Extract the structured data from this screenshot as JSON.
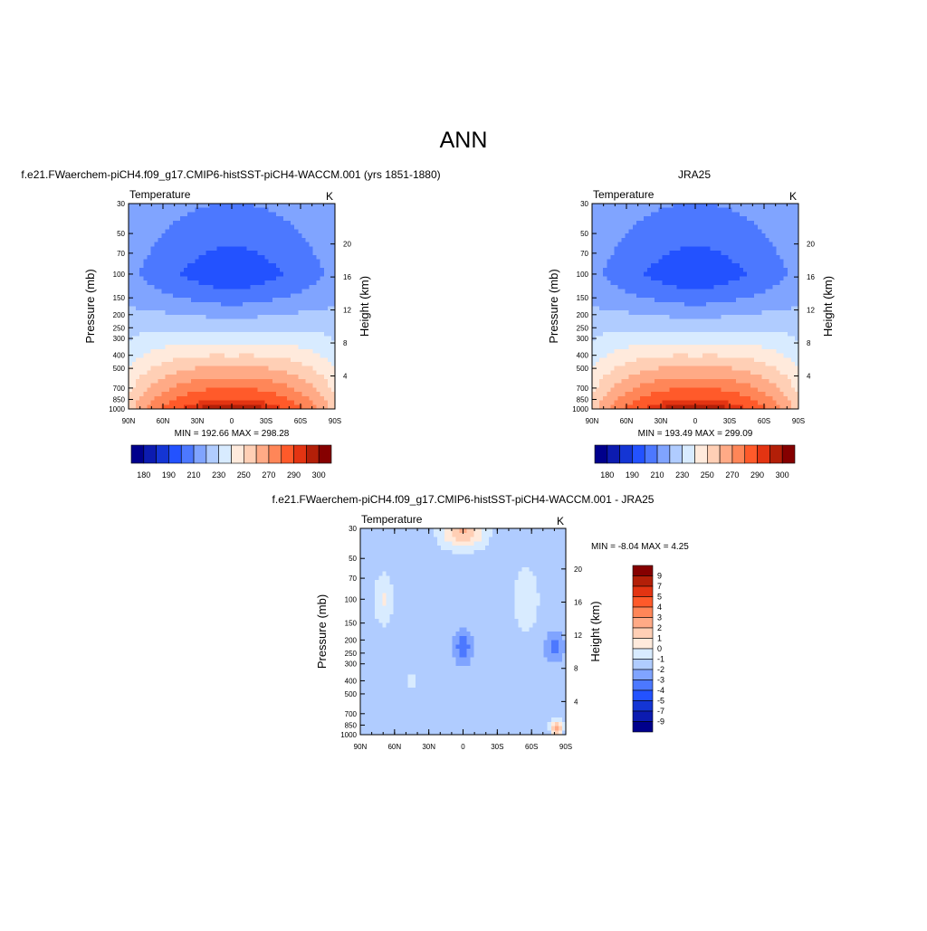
{
  "page_title": "ANN",
  "colors": {
    "abs_levels": [
      "#00008c",
      "#0c1bb0",
      "#1435d4",
      "#2352ff",
      "#4c78ff",
      "#80a4ff",
      "#b0ccff",
      "#d8ebff",
      "#ffeadc",
      "#ffcfb5",
      "#ffaa86",
      "#ff8658",
      "#ff5a2a",
      "#e33412",
      "#b31f08",
      "#850000"
    ],
    "diff_levels": [
      "#00008c",
      "#0c1bb0",
      "#1435d4",
      "#2352ff",
      "#4c78ff",
      "#80a4ff",
      "#b0ccff",
      "#d8ebff",
      "#ffeadc",
      "#ffcfb5",
      "#ffaa86",
      "#ff8658",
      "#ff5a2a",
      "#e33412",
      "#b31f08",
      "#850000"
    ]
  },
  "chart_data": [
    {
      "type": "heatmap",
      "title": "f.e21.FWaerchem-piCH4.f09_g17.CMIP6-histSST-piCH4-WACCM.001 (yrs 1851-1880)",
      "left_string": "Temperature",
      "right_string": "K",
      "xlabel": "",
      "ylabel": "Pressure (mb)",
      "ylabel_right": "Height (km)",
      "x_ticks": [
        "90N",
        "60N",
        "30N",
        "0",
        "30S",
        "60S",
        "90S"
      ],
      "y_ticks": [
        "30",
        "50",
        "70",
        "100",
        "150",
        "200",
        "250",
        "300",
        "400",
        "500",
        "700",
        "850",
        "1000"
      ],
      "y_right_ticks": [
        "20",
        "16",
        "12",
        "8",
        "4"
      ],
      "ylim": [
        1000,
        30
      ],
      "y_log": true,
      "stats": "MIN = 192.66  MAX = 298.28",
      "colorbar_labels": [
        "180",
        "190",
        "210",
        "230",
        "250",
        "270",
        "290",
        "300"
      ],
      "field": "temperature"
    },
    {
      "type": "heatmap",
      "title": "JRA25",
      "left_string": "Temperature",
      "right_string": "K",
      "xlabel": "",
      "ylabel": "Pressure (mb)",
      "ylabel_right": "Height (km)",
      "x_ticks": [
        "90N",
        "60N",
        "30N",
        "0",
        "30S",
        "60S",
        "90S"
      ],
      "y_ticks": [
        "30",
        "50",
        "70",
        "100",
        "150",
        "200",
        "250",
        "300",
        "400",
        "500",
        "700",
        "850",
        "1000"
      ],
      "y_right_ticks": [
        "20",
        "16",
        "12",
        "8",
        "4"
      ],
      "ylim": [
        1000,
        30
      ],
      "y_log": true,
      "stats": "MIN = 193.49  MAX = 299.09",
      "colorbar_labels": [
        "180",
        "190",
        "210",
        "230",
        "250",
        "270",
        "290",
        "300"
      ],
      "field": "temperature"
    },
    {
      "type": "heatmap",
      "title": "f.e21.FWaerchem-piCH4.f09_g17.CMIP6-histSST-piCH4-WACCM.001 - JRA25",
      "left_string": "Temperature",
      "right_string": "K",
      "xlabel": "",
      "ylabel": "Pressure (mb)",
      "ylabel_right": "Height (km)",
      "x_ticks": [
        "90N",
        "60N",
        "30N",
        "0",
        "30S",
        "60S",
        "90S"
      ],
      "y_ticks": [
        "30",
        "50",
        "70",
        "100",
        "150",
        "200",
        "250",
        "300",
        "400",
        "500",
        "700",
        "850",
        "1000"
      ],
      "y_right_ticks": [
        "20",
        "16",
        "12",
        "8",
        "4"
      ],
      "ylim": [
        1000,
        30
      ],
      "y_log": true,
      "stats": "MIN =  -8.04  MAX =   4.25",
      "colorbar_labels": [
        "9",
        "7",
        "5",
        "4",
        "3",
        "2",
        "1",
        "0",
        "-1",
        "-2",
        "-3",
        "-4",
        "-5",
        "-7",
        "-9"
      ],
      "field": "difference"
    }
  ]
}
